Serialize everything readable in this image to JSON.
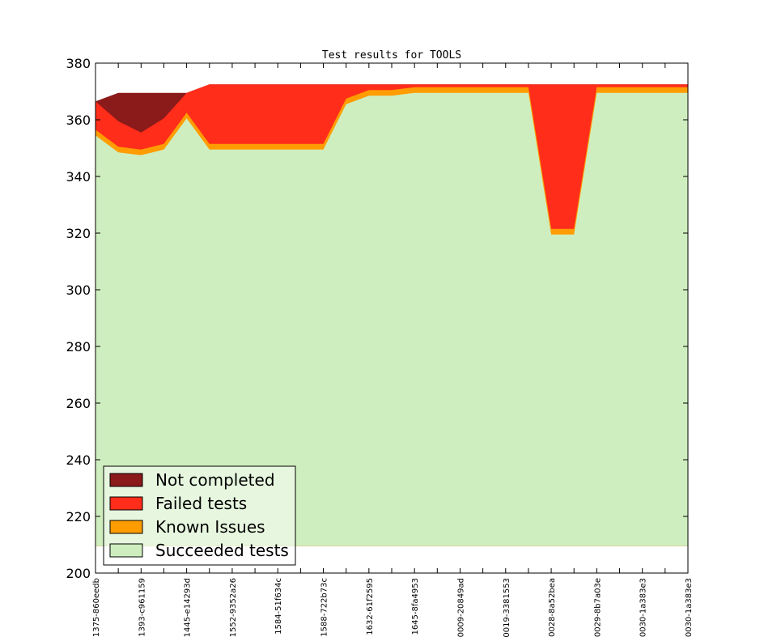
{
  "chart_data": {
    "type": "area",
    "title": "Test results for TOOLS",
    "xlabel": "",
    "ylabel": "",
    "ylim": [
      200,
      380
    ],
    "yticks": [
      200,
      220,
      240,
      260,
      280,
      300,
      320,
      340,
      360,
      380
    ],
    "x_tick_labels": [
      "1375-860eedb",
      "1393-c961159",
      "1445-e14293d",
      "1552-9352a26",
      "1584-51f634c",
      "1588-722b73c",
      "1632-61f2595",
      "1645-8fa4953",
      "0009-20849ad",
      "0019-3381553",
      "0028-8a52bea",
      "0029-8b7a03e",
      "0030-1a383e3",
      "0030-1a383e3"
    ],
    "series": [
      {
        "name": "Succeeded tests",
        "color": "#cfeebf",
        "values": [
          354.5,
          348.5,
          347.5,
          349.5,
          360.5,
          349.5,
          349.5,
          349.5,
          349.5,
          349.5,
          349.5,
          365.5,
          368.5,
          368.5,
          369.5,
          369.5,
          369.5,
          369.5,
          369.5,
          369.5,
          319.5,
          319.5,
          369.5,
          369.5,
          369.5,
          369.5,
          369.5
        ]
      },
      {
        "name": "Known Issues",
        "color": "#ff9c00",
        "values": [
          356.5,
          350.5,
          349.5,
          351.5,
          362.5,
          351.5,
          351.5,
          351.5,
          351.5,
          351.5,
          351.5,
          367.5,
          370.5,
          370.5,
          371.5,
          371.5,
          371.5,
          371.5,
          371.5,
          371.5,
          321.5,
          321.5,
          371.5,
          371.5,
          371.5,
          371.5,
          371.5
        ]
      },
      {
        "name": "Failed tests",
        "color": "#ff2d1a",
        "values": [
          366.5,
          359.5,
          355.5,
          360.5,
          369.5,
          372.5,
          372.5,
          372.5,
          372.5,
          372.5,
          372.5,
          372.5,
          372.5,
          372.5,
          372.5,
          372.5,
          372.5,
          372.5,
          372.5,
          372.5,
          372.5,
          372.5,
          372.5,
          372.5,
          372.5,
          372.5,
          372.5
        ]
      },
      {
        "name": "Not completed",
        "color": "#8b1a1a",
        "values": [
          366.5,
          369.5,
          369.5,
          369.5,
          369.5,
          372.5,
          372.5,
          372.5,
          372.5,
          372.5,
          372.5,
          372.5,
          372.5,
          372.5,
          372.5,
          372.5,
          372.5,
          372.5,
          372.5,
          372.5,
          372.5,
          372.5,
          372.5,
          372.5,
          372.5,
          372.5,
          372.5
        ]
      }
    ],
    "baseline": 209.5,
    "legend": {
      "placement": "lower-left",
      "entries": [
        "Not completed",
        "Failed tests",
        "Known Issues",
        "Succeeded tests"
      ]
    },
    "grid": false
  }
}
